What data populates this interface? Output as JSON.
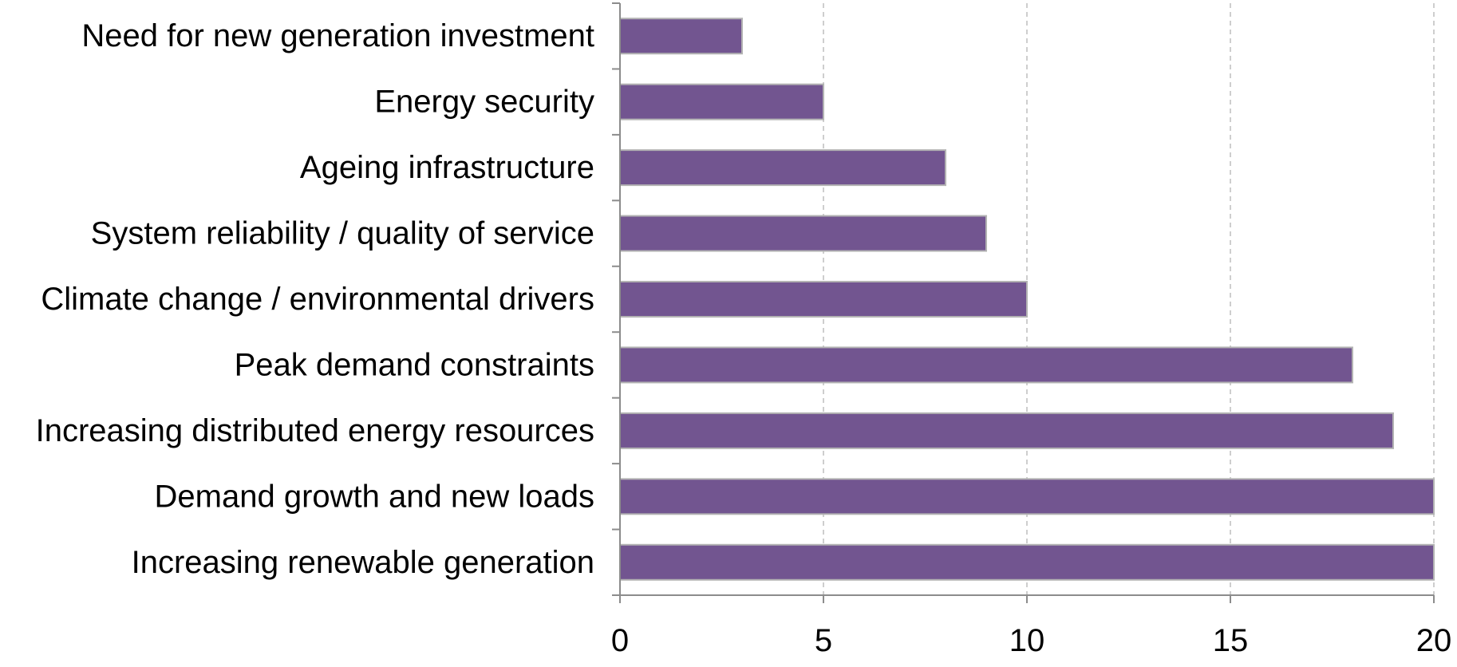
{
  "chart_data": {
    "type": "bar",
    "orientation": "horizontal",
    "title": "",
    "xlabel": "",
    "ylabel": "",
    "categories": [
      "Need for new generation investment",
      "Energy security",
      "Ageing infrastructure",
      "System reliability / quality of service",
      "Climate change / environmental drivers",
      "Peak demand constraints",
      "Increasing distributed energy resources",
      "Demand growth and new loads",
      "Increasing renewable generation"
    ],
    "values": [
      3,
      5,
      8,
      9,
      10,
      18,
      19,
      20,
      20
    ],
    "xlim": [
      0,
      20
    ],
    "xticks": [
      0,
      5,
      10,
      15,
      20
    ],
    "xtick_labels": [
      "0",
      "5",
      "10",
      "15",
      "20"
    ],
    "grid": "vertical dashed",
    "legend": "none",
    "colors": {
      "bar": "#725590",
      "bar_edge": "#b3b3b3",
      "grid": "#bdbdbd",
      "axis": "#8c8c8c"
    }
  }
}
